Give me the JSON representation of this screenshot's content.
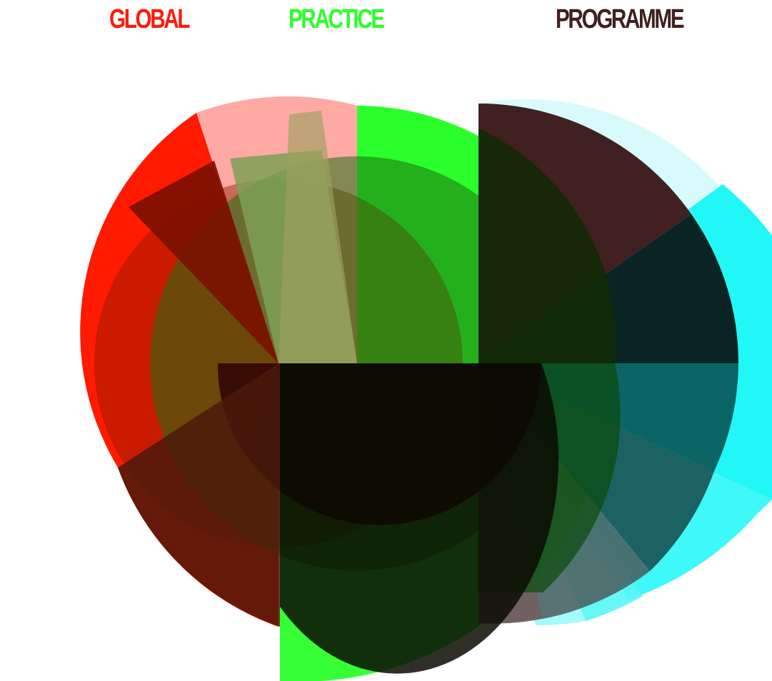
{
  "titles": {
    "global": "GLOBAL",
    "practice": "PRACTICE",
    "programme": "PROGRAMME"
  },
  "colors": {
    "global": "#ff1a0a",
    "practice": "#2bff2b",
    "programme": "#40201f",
    "cyan": "#22f7f7"
  }
}
